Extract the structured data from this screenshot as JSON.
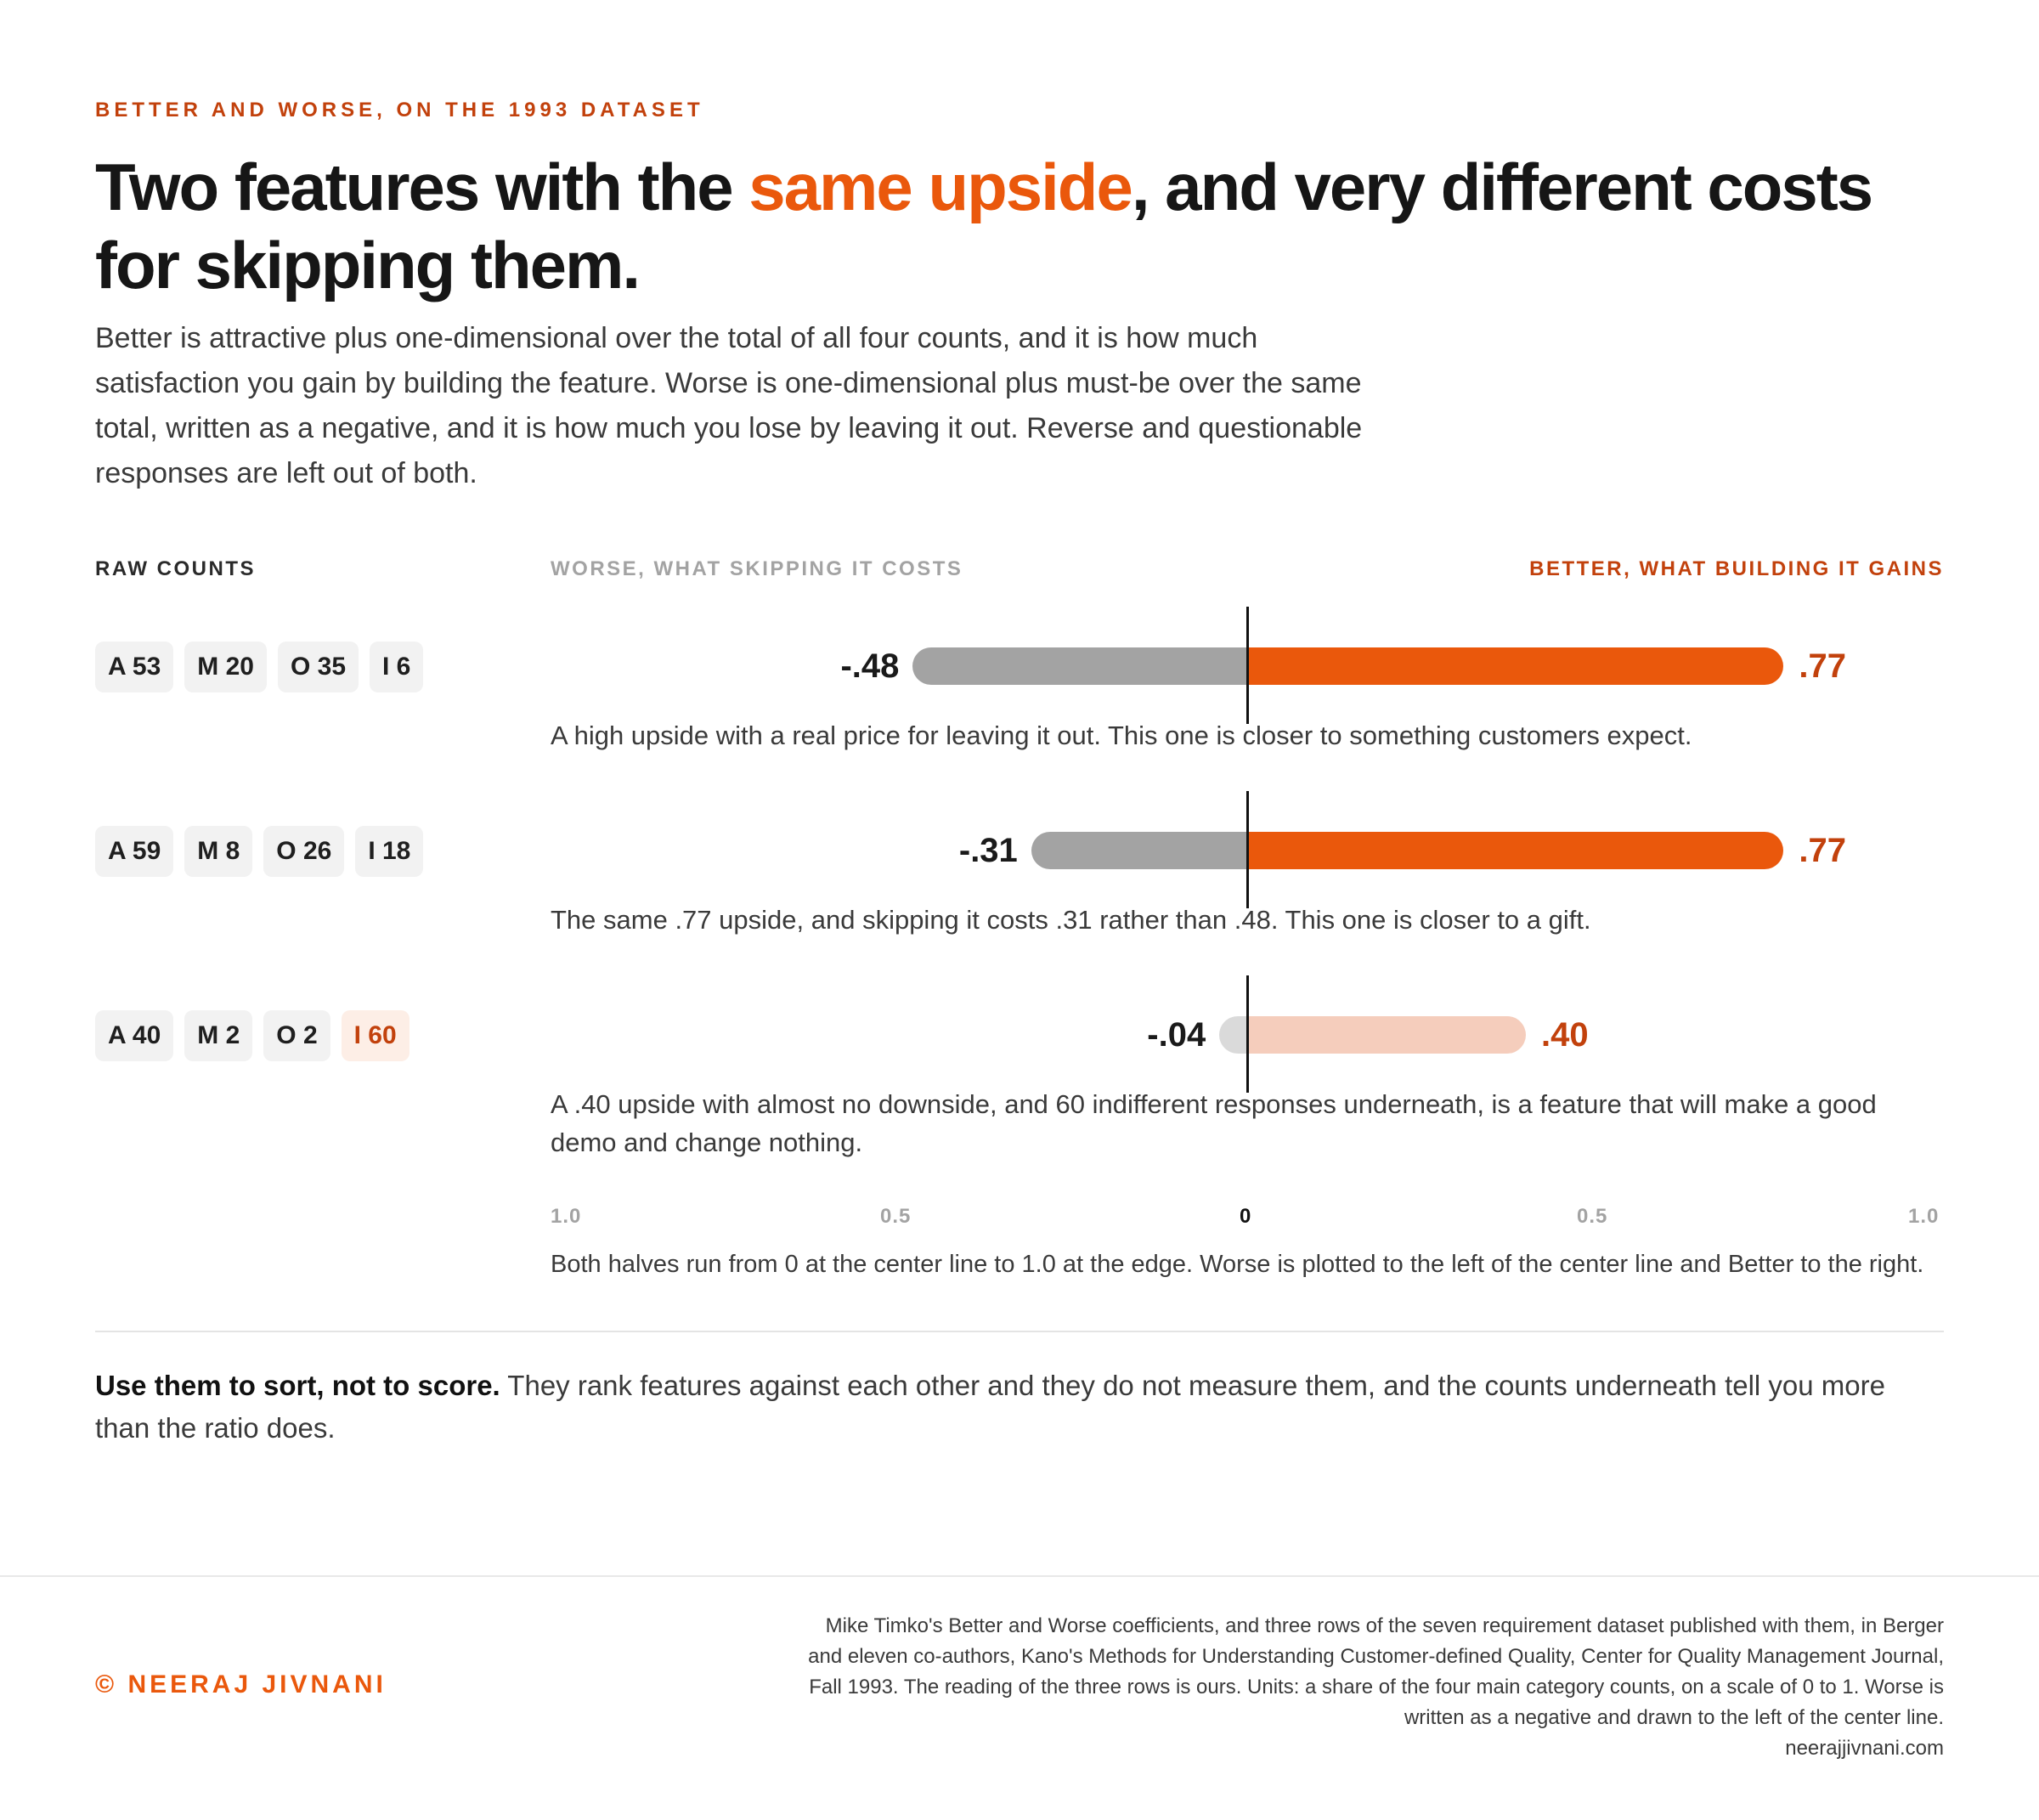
{
  "header": {
    "eyebrow": "BETTER AND WORSE, ON THE 1993 DATASET",
    "title_part1": "Two features with the ",
    "title_highlight": "same upside",
    "title_part2": ", and very different costs for skipping them.",
    "intro": "Better is attractive plus one-dimensional over the total of all four counts, and it is how much satisfaction you gain by building the feature. Worse is one-dimensional plus must-be over the same total, written as a negative, and it is how much you lose by leaving it out. Reverse and questionable responses are left out of both."
  },
  "columns": {
    "raw_counts": "RAW COUNTS",
    "worse": "WORSE, WHAT SKIPPING IT COSTS",
    "better": "BETTER, WHAT BUILDING IT GAINS"
  },
  "chart_data": {
    "type": "bar",
    "orientation": "horizontal diverging",
    "xlim_worse": [
      0,
      1.0
    ],
    "xlim_better": [
      0,
      1.0
    ],
    "ticks": [
      "1.0",
      "0.5",
      "0",
      "0.5",
      "1.0"
    ],
    "colors": {
      "better": "#ea580c",
      "worse": "#a3a3a3",
      "better_faded": "#f5cdbc",
      "worse_faded": "#dadada",
      "accent_text": "#c2410c"
    },
    "rows": [
      {
        "counts": [
          "A 53",
          "M 20",
          "O 35",
          "I 6"
        ],
        "warn_chip": -1,
        "worse": -0.48,
        "better": 0.77,
        "worse_label": "-.48",
        "better_label": ".77",
        "faded": false,
        "note": "A high upside with a real price for leaving it out. This one is closer to something customers expect."
      },
      {
        "counts": [
          "A 59",
          "M 8",
          "O 26",
          "I 18"
        ],
        "warn_chip": -1,
        "worse": -0.31,
        "better": 0.77,
        "worse_label": "-.31",
        "better_label": ".77",
        "faded": false,
        "note": "The same .77 upside, and skipping it costs .31 rather than .48. This one is closer to a gift."
      },
      {
        "counts": [
          "A 40",
          "M 2",
          "O 2",
          "I 60"
        ],
        "warn_chip": 3,
        "worse": -0.04,
        "better": 0.4,
        "worse_label": "-.04",
        "better_label": ".40",
        "faded": true,
        "note": "A .40 upside with almost no downside, and 60 indifferent responses underneath, is a feature that will make a good demo and change nothing."
      }
    ],
    "axis_note": "Both halves run from 0 at the center line to 1.0 at the edge. Worse is plotted to the left of the center line and Better to the right."
  },
  "takeaway": {
    "bold": "Use them to sort, not to score.",
    "text": " They rank features against each other and they do not measure them, and the counts underneath tell you more than the ratio does."
  },
  "footer": {
    "credit": "© NEERAJ JIVNANI",
    "source": "Mike Timko's Better and Worse coefficients, and three rows of the seven requirement dataset published with them, in Berger and eleven co-authors, Kano's Methods for Understanding Customer-defined Quality, Center for Quality Management Journal, Fall 1993. The reading of the three rows is ours. Units: a share of the four main category counts, on a scale of 0 to 1. Worse is written as a negative and drawn to the left of the center line.",
    "site": "neerajjivnani.com"
  }
}
